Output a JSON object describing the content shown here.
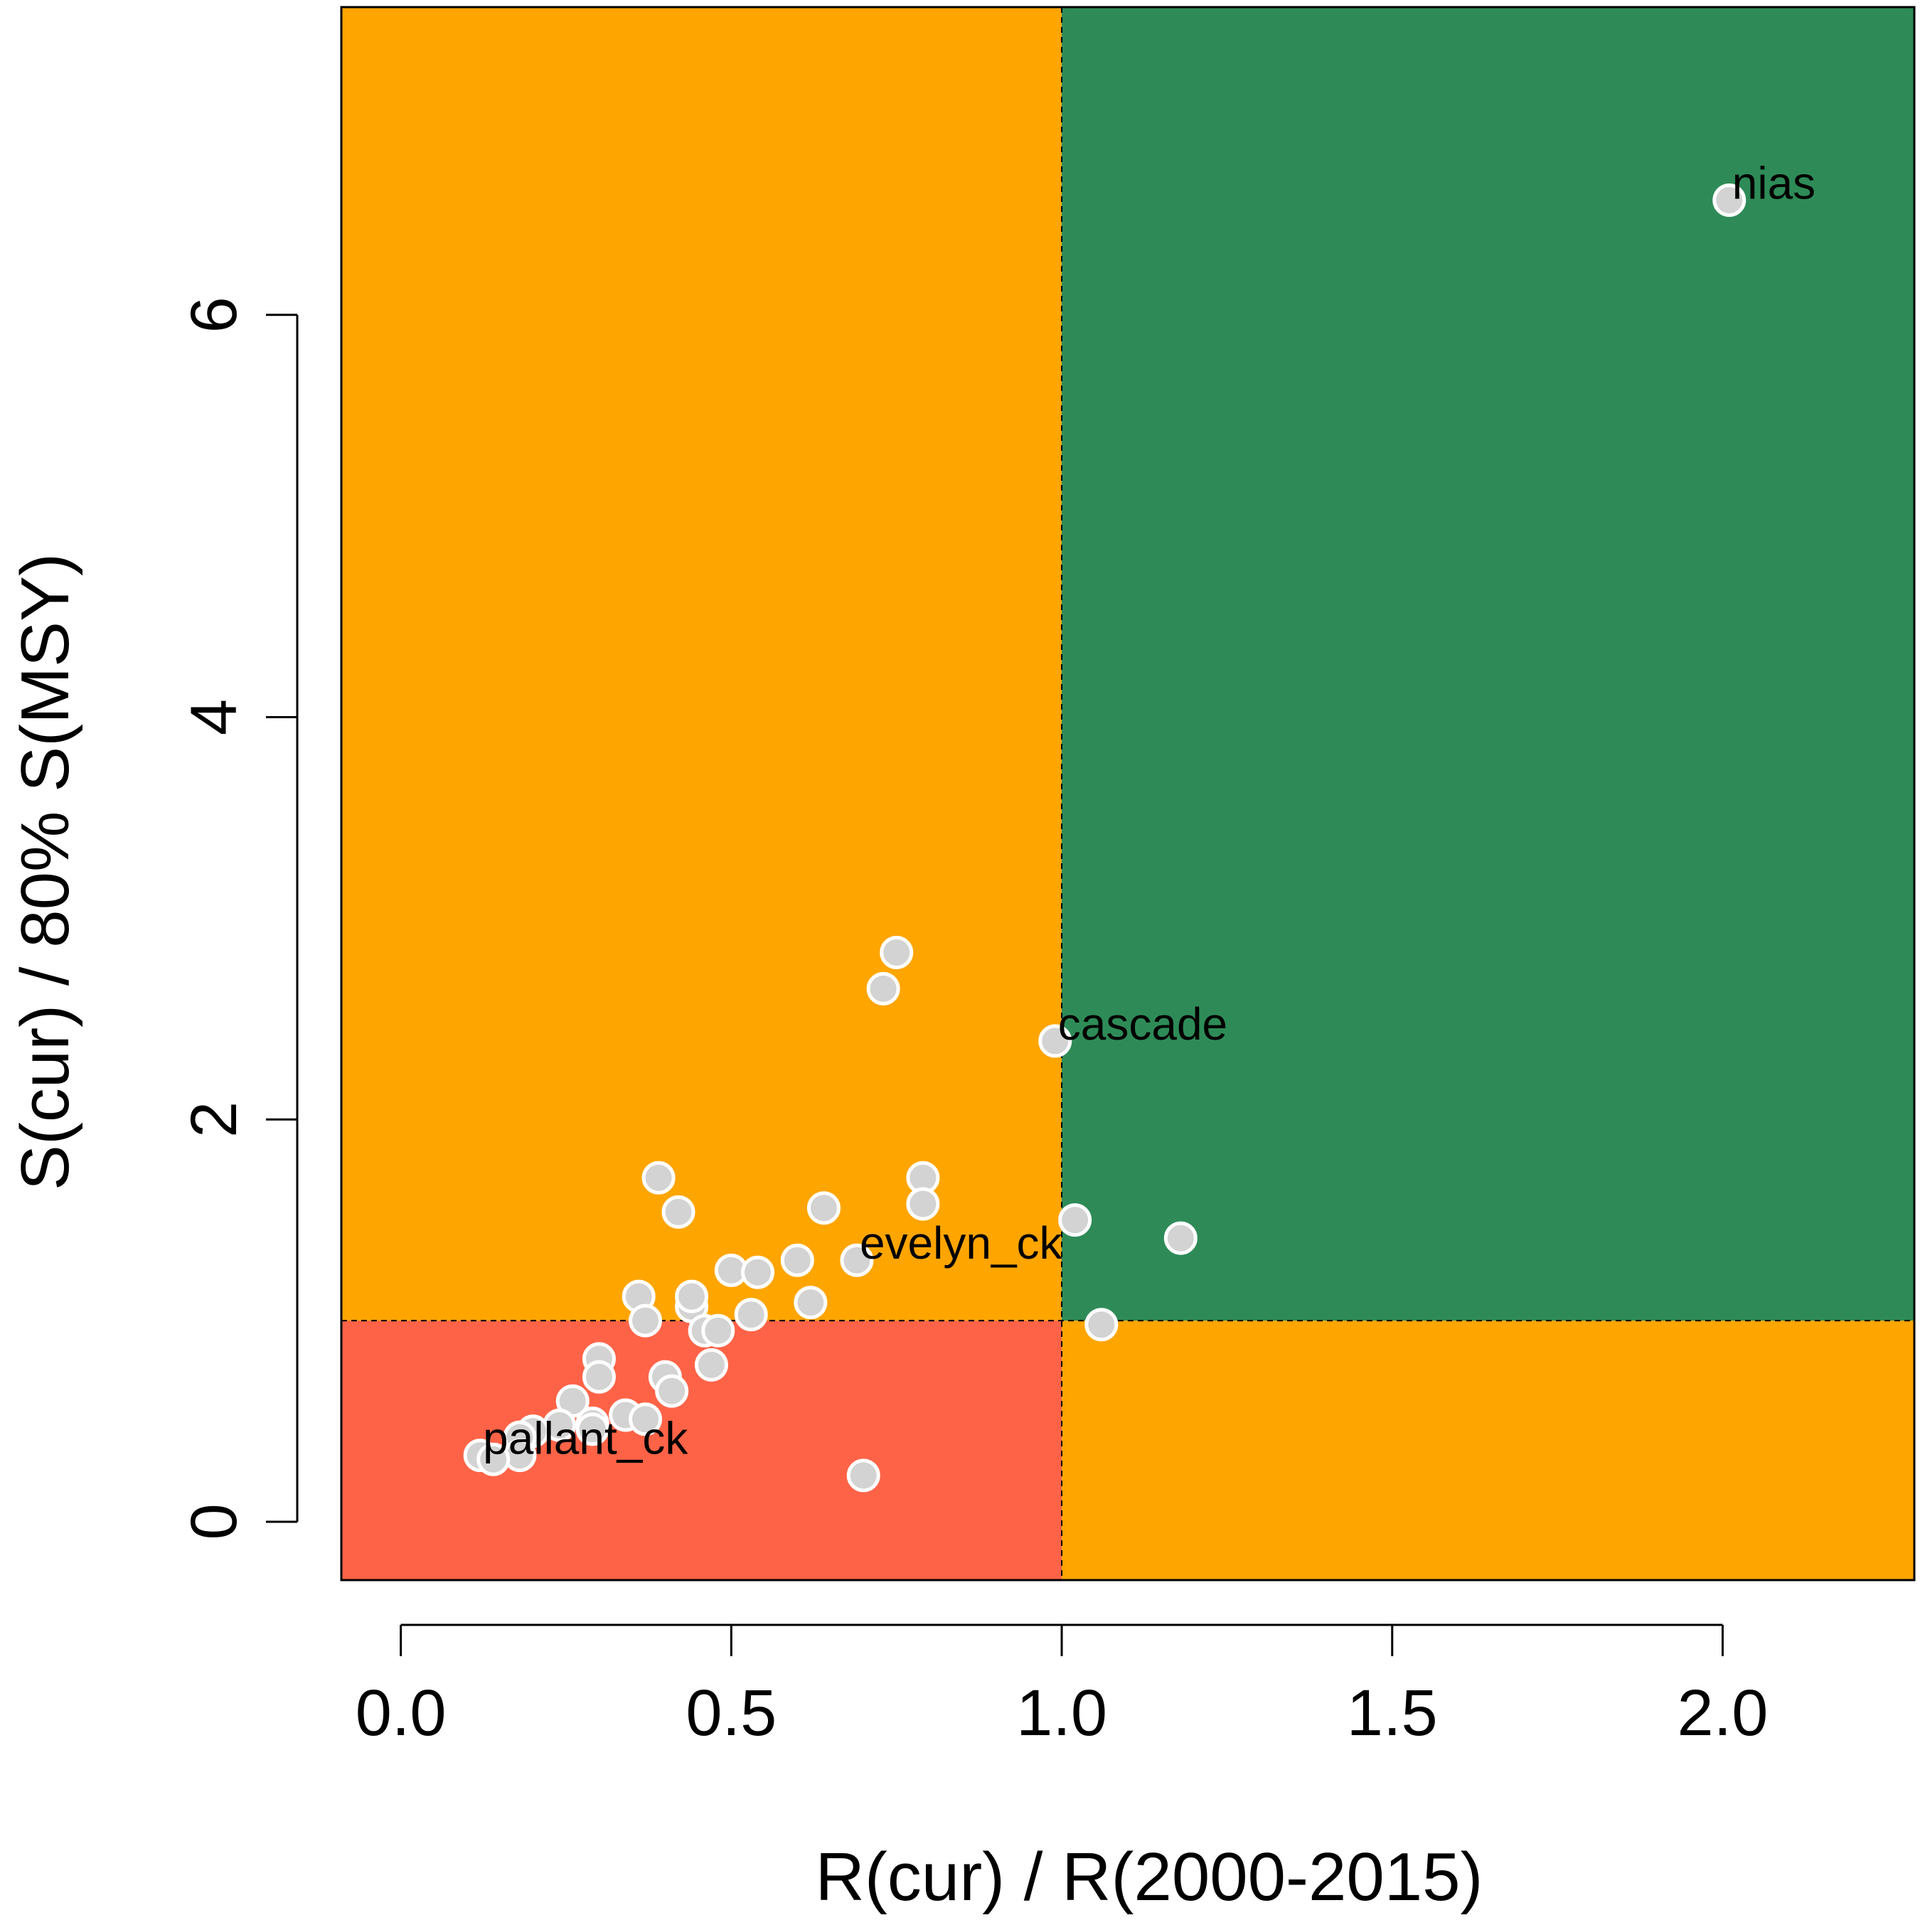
{
  "chart_data": {
    "type": "scatter",
    "xlabel": "R(cur) / R(2000-2015)",
    "ylabel": "S(cur) / 80% S(MSY)",
    "xlim": [
      -0.09,
      2.29
    ],
    "ylim": [
      -0.29,
      7.53
    ],
    "x_ticks": [
      0.0,
      0.5,
      1.0,
      1.5,
      2.0
    ],
    "x_tick_labels": [
      "0.0",
      "0.5",
      "1.0",
      "1.5",
      "2.0"
    ],
    "y_ticks": [
      0,
      2,
      4,
      6
    ],
    "y_tick_labels": [
      "0",
      "2",
      "4",
      "6"
    ],
    "reference_lines": {
      "x": 1.0,
      "y": 1.0,
      "style": "dashed"
    },
    "zones": [
      {
        "name": "low-low",
        "x": [
          -0.09,
          1.0
        ],
        "y": [
          -0.29,
          1.0
        ],
        "color": "#ff6347"
      },
      {
        "name": "low-high",
        "x": [
          -0.09,
          1.0
        ],
        "y": [
          1.0,
          7.53
        ],
        "color": "#ffa500"
      },
      {
        "name": "high-low",
        "x": [
          1.0,
          2.29
        ],
        "y": [
          -0.29,
          1.0
        ],
        "color": "#ffa500"
      },
      {
        "name": "high-high",
        "x": [
          1.0,
          2.29
        ],
        "y": [
          1.0,
          7.53
        ],
        "color": "#2e8b57"
      }
    ],
    "point_style": {
      "fill": "#d3d3d3",
      "stroke": "#ffffff"
    },
    "points": [
      {
        "x": 2.01,
        "y": 6.57,
        "label": "nias"
      },
      {
        "x": 0.99,
        "y": 2.39,
        "label": "cascade"
      },
      {
        "x": 0.69,
        "y": 1.3,
        "label": "evelyn_ck"
      },
      {
        "x": 0.12,
        "y": 0.33,
        "label": "pallant_ck"
      },
      {
        "x": 0.75,
        "y": 2.83
      },
      {
        "x": 0.73,
        "y": 2.65
      },
      {
        "x": 0.39,
        "y": 1.71
      },
      {
        "x": 0.42,
        "y": 1.54
      },
      {
        "x": 0.64,
        "y": 1.56
      },
      {
        "x": 0.79,
        "y": 1.71
      },
      {
        "x": 0.79,
        "y": 1.58
      },
      {
        "x": 1.02,
        "y": 1.5
      },
      {
        "x": 1.18,
        "y": 1.41
      },
      {
        "x": 1.06,
        "y": 0.98
      },
      {
        "x": 0.5,
        "y": 1.25
      },
      {
        "x": 0.54,
        "y": 1.24
      },
      {
        "x": 0.6,
        "y": 1.3
      },
      {
        "x": 0.36,
        "y": 1.12
      },
      {
        "x": 0.37,
        "y": 1.0
      },
      {
        "x": 0.44,
        "y": 1.07
      },
      {
        "x": 0.44,
        "y": 1.12
      },
      {
        "x": 0.46,
        "y": 0.95
      },
      {
        "x": 0.48,
        "y": 0.95
      },
      {
        "x": 0.53,
        "y": 1.03
      },
      {
        "x": 0.62,
        "y": 1.09
      },
      {
        "x": 0.3,
        "y": 0.81
      },
      {
        "x": 0.3,
        "y": 0.72
      },
      {
        "x": 0.4,
        "y": 0.72
      },
      {
        "x": 0.41,
        "y": 0.65
      },
      {
        "x": 0.47,
        "y": 0.78
      },
      {
        "x": 0.26,
        "y": 0.6
      },
      {
        "x": 0.34,
        "y": 0.53
      },
      {
        "x": 0.37,
        "y": 0.51
      },
      {
        "x": 0.29,
        "y": 0.49
      },
      {
        "x": 0.29,
        "y": 0.46
      },
      {
        "x": 0.24,
        "y": 0.48
      },
      {
        "x": 0.2,
        "y": 0.45
      },
      {
        "x": 0.18,
        "y": 0.42
      },
      {
        "x": 0.18,
        "y": 0.33
      },
      {
        "x": 0.14,
        "y": 0.31
      },
      {
        "x": 0.7,
        "y": 0.23
      }
    ]
  }
}
